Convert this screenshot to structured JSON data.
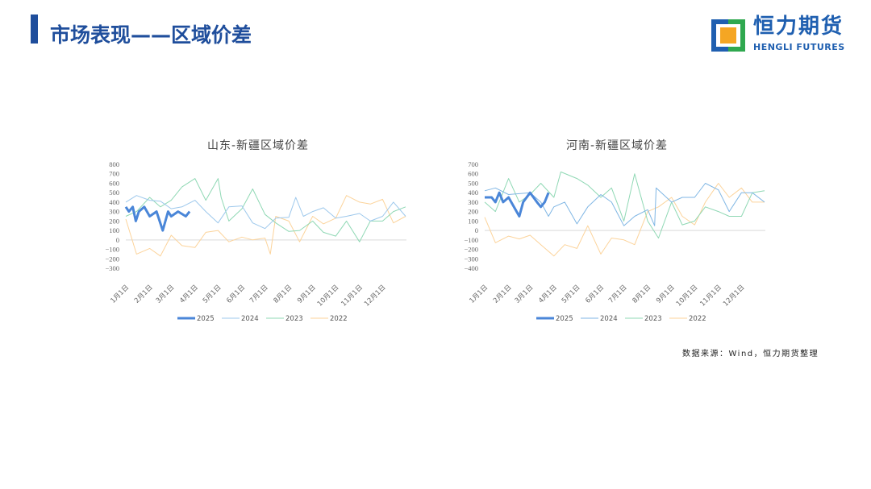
{
  "header": {
    "title": "市场表现——区域价差"
  },
  "logo": {
    "cn": "恒力期货",
    "en": "HENGLI FUTURES",
    "colors": [
      "#1f5fb0",
      "#2fa84f",
      "#f5a623"
    ]
  },
  "source": "数据来源：Wind，恒力期货整理",
  "chart_data": [
    {
      "type": "line",
      "title": "山东-新疆区域价差",
      "ylim": [
        -300,
        800
      ],
      "yticks": [
        800,
        700,
        600,
        500,
        400,
        300,
        200,
        100,
        0,
        -100,
        -200,
        -300
      ],
      "xticks": [
        "1月1日",
        "2月1日",
        "3月1日",
        "4月1日",
        "5月1日",
        "6月1日",
        "7月1日",
        "8月1日",
        "9月1日",
        "10月1日",
        "11月1日",
        "12月1日"
      ],
      "legend": "bottom",
      "series": [
        {
          "name": "2025",
          "color": "#4a86d8",
          "width": 3,
          "x": [
            "01-01",
            "01-05",
            "01-10",
            "01-14",
            "01-18",
            "01-25",
            "02-01",
            "02-10",
            "02-18",
            "02-25",
            "03-01",
            "03-10",
            "03-20",
            "03-25"
          ],
          "y": [
            350,
            300,
            350,
            200,
            300,
            350,
            250,
            300,
            100,
            300,
            250,
            300,
            250,
            300
          ]
        },
        {
          "name": "2024",
          "color": "#9dc8ec",
          "width": 1,
          "x": [
            "01-01",
            "01-15",
            "02-01",
            "02-15",
            "03-01",
            "03-15",
            "04-01",
            "04-15",
            "05-01",
            "05-15",
            "06-01",
            "06-15",
            "07-01",
            "07-15",
            "08-01",
            "08-10",
            "08-20",
            "09-01",
            "09-15",
            "10-01",
            "10-15",
            "11-01",
            "11-15",
            "12-01",
            "12-15",
            "12-31"
          ],
          "y": [
            400,
            470,
            420,
            410,
            330,
            350,
            420,
            300,
            180,
            350,
            360,
            180,
            120,
            230,
            240,
            450,
            250,
            300,
            340,
            230,
            250,
            280,
            200,
            250,
            400,
            250
          ]
        },
        {
          "name": "2023",
          "color": "#8fd8b4",
          "width": 1,
          "x": [
            "01-01",
            "01-15",
            "02-01",
            "02-15",
            "03-01",
            "03-15",
            "04-01",
            "04-15",
            "05-01",
            "05-05",
            "05-15",
            "06-01",
            "06-15",
            "07-01",
            "07-15",
            "08-01",
            "08-15",
            "09-01",
            "09-15",
            "10-01",
            "10-15",
            "11-01",
            "11-15",
            "12-01",
            "12-15",
            "12-31"
          ],
          "y": [
            250,
            300,
            450,
            350,
            420,
            560,
            650,
            420,
            650,
            450,
            200,
            330,
            540,
            270,
            180,
            90,
            100,
            200,
            80,
            40,
            200,
            -20,
            200,
            200,
            300,
            350
          ]
        },
        {
          "name": "2022",
          "color": "#fcd39a",
          "width": 1,
          "x": [
            "01-01",
            "01-15",
            "02-01",
            "02-15",
            "03-01",
            "03-15",
            "04-01",
            "04-15",
            "05-01",
            "05-15",
            "06-01",
            "06-15",
            "07-01",
            "07-08",
            "07-15",
            "08-01",
            "08-15",
            "09-01",
            "09-15",
            "10-01",
            "10-15",
            "11-01",
            "11-15",
            "12-01",
            "12-15",
            "12-31"
          ],
          "y": [
            220,
            -150,
            -90,
            -170,
            50,
            -60,
            -80,
            80,
            100,
            -20,
            30,
            0,
            20,
            -150,
            250,
            200,
            -20,
            250,
            170,
            230,
            470,
            400,
            380,
            430,
            180,
            250
          ]
        }
      ]
    },
    {
      "type": "line",
      "title": "河南-新疆区域价差",
      "ylim": [
        -400,
        700
      ],
      "yticks": [
        700,
        600,
        500,
        400,
        300,
        200,
        100,
        0,
        -100,
        -200,
        -300,
        -400
      ],
      "xticks": [
        "1月1日",
        "2月1日",
        "3月1日",
        "4月1日",
        "5月1日",
        "6月1日",
        "7月1日",
        "8月1日",
        "9月1日",
        "10月1日",
        "11月1日",
        "12月1日"
      ],
      "legend": "bottom",
      "series": [
        {
          "name": "2025",
          "color": "#4a86d8",
          "width": 3,
          "x": [
            "01-01",
            "01-10",
            "01-15",
            "01-20",
            "01-25",
            "02-01",
            "02-15",
            "02-20",
            "03-01",
            "03-10",
            "03-15",
            "03-20",
            "03-25"
          ],
          "y": [
            350,
            350,
            300,
            400,
            300,
            350,
            150,
            300,
            400,
            300,
            250,
            300,
            400
          ]
        },
        {
          "name": "2024",
          "color": "#7fb6e4",
          "width": 1,
          "x": [
            "01-01",
            "01-15",
            "02-01",
            "03-01",
            "03-15",
            "03-25",
            "04-01",
            "04-15",
            "05-01",
            "05-15",
            "06-01",
            "06-15",
            "07-01",
            "07-15",
            "08-01",
            "08-10",
            "08-12",
            "09-01",
            "09-15",
            "10-01",
            "10-15",
            "11-01",
            "11-15",
            "12-01",
            "12-15",
            "12-31"
          ],
          "y": [
            420,
            450,
            380,
            400,
            300,
            150,
            250,
            300,
            70,
            250,
            380,
            300,
            50,
            150,
            220,
            50,
            450,
            300,
            350,
            350,
            500,
            430,
            200,
            400,
            400,
            300
          ]
        },
        {
          "name": "2023",
          "color": "#8fd8b4",
          "width": 1,
          "x": [
            "01-01",
            "01-15",
            "02-01",
            "02-15",
            "03-01",
            "03-15",
            "04-01",
            "04-10",
            "05-01",
            "05-15",
            "06-01",
            "06-15",
            "07-01",
            "07-15",
            "08-01",
            "08-15",
            "09-01",
            "09-15",
            "10-01",
            "10-15",
            "11-01",
            "11-15",
            "12-01",
            "12-15",
            "12-31"
          ],
          "y": [
            300,
            200,
            550,
            300,
            380,
            500,
            350,
            620,
            550,
            480,
            350,
            450,
            100,
            600,
            100,
            -80,
            300,
            60,
            100,
            250,
            200,
            150,
            150,
            400,
            420
          ]
        },
        {
          "name": "2022",
          "color": "#fcd39a",
          "width": 1,
          "x": [
            "01-01",
            "01-15",
            "02-01",
            "02-15",
            "03-01",
            "03-15",
            "04-01",
            "04-15",
            "05-01",
            "05-15",
            "06-01",
            "06-15",
            "07-01",
            "07-15",
            "08-01",
            "08-15",
            "09-01",
            "09-15",
            "10-01",
            "10-15",
            "11-01",
            "11-15",
            "12-01",
            "12-15",
            "12-31"
          ],
          "y": [
            140,
            -130,
            -60,
            -90,
            -50,
            -150,
            -270,
            -150,
            -190,
            50,
            -250,
            -80,
            -100,
            -150,
            200,
            250,
            350,
            150,
            60,
            300,
            500,
            350,
            450,
            300,
            300
          ]
        }
      ]
    }
  ]
}
